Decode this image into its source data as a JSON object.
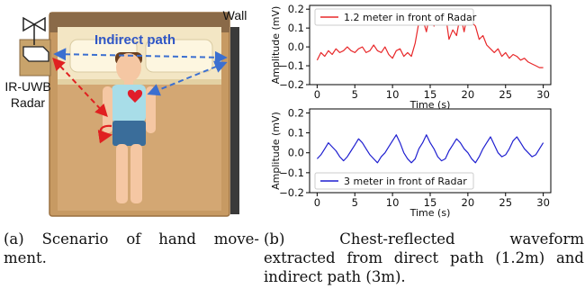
{
  "scene": {
    "wall_label": "Wall",
    "indirect_label": "Indirect path",
    "radar_label_1": "IR-UWB",
    "radar_label_2": "Radar"
  },
  "captions": {
    "a_line1": "(a) Scenario of hand move-",
    "a_line2": "ment.",
    "b_line1": "(b)    Chest-reflected    waveform",
    "b_line2": "extracted from direct path (1.2m) and",
    "b_line3": "indirect path (3m)."
  },
  "chart_data": [
    {
      "type": "line",
      "ylabel": "Amplitude (mV)",
      "xlabel": "Time (s)",
      "xlim": [
        -1,
        31
      ],
      "ylim": [
        -0.2,
        0.22
      ],
      "xticks": [
        0,
        5,
        10,
        15,
        20,
        25,
        30
      ],
      "yticks": [
        -0.2,
        -0.1,
        0.0,
        0.1,
        0.2
      ],
      "ytick_labels": [
        "−0.2",
        "−0.1",
        "0.0",
        "0.1",
        "0.2"
      ],
      "grid": false,
      "legend_position": "top-left",
      "series": [
        {
          "name": "1.2 meter in front of Radar",
          "color": "#e8282a",
          "x": [
            0,
            0.5,
            1,
            1.5,
            2,
            2.5,
            3,
            3.5,
            4,
            4.5,
            5,
            5.5,
            6,
            6.5,
            7,
            7.5,
            8,
            8.5,
            9,
            9.5,
            10,
            10.5,
            11,
            11.5,
            12,
            12.5,
            13,
            13.5,
            14,
            14.5,
            15,
            15.5,
            16,
            16.5,
            17,
            17.5,
            18,
            18.5,
            19,
            19.5,
            20,
            20.5,
            21,
            21.5,
            22,
            22.5,
            23,
            23.5,
            24,
            24.5,
            25,
            25.5,
            26,
            26.5,
            27,
            27.5,
            28,
            28.5,
            29,
            29.5,
            30
          ],
          "values": [
            -0.07,
            -0.03,
            -0.05,
            -0.02,
            -0.04,
            -0.01,
            -0.03,
            -0.02,
            0.0,
            -0.02,
            -0.03,
            -0.01,
            0.0,
            -0.03,
            -0.02,
            0.01,
            -0.02,
            -0.03,
            0.0,
            -0.04,
            -0.06,
            -0.02,
            -0.01,
            -0.05,
            -0.03,
            -0.05,
            0.02,
            0.13,
            0.15,
            0.08,
            0.19,
            0.11,
            0.16,
            0.13,
            0.18,
            0.04,
            0.09,
            0.06,
            0.17,
            0.08,
            0.19,
            0.13,
            0.11,
            0.04,
            0.06,
            0.01,
            -0.01,
            -0.03,
            -0.01,
            -0.05,
            -0.03,
            -0.06,
            -0.04,
            -0.05,
            -0.07,
            -0.06,
            -0.08,
            -0.09,
            -0.1,
            -0.11,
            -0.11
          ]
        }
      ]
    },
    {
      "type": "line",
      "ylabel": "Amplitude (mV)",
      "xlabel": "Time (s)",
      "xlim": [
        -1,
        31
      ],
      "ylim": [
        -0.2,
        0.22
      ],
      "xticks": [
        0,
        5,
        10,
        15,
        20,
        25,
        30
      ],
      "yticks": [
        -0.2,
        -0.1,
        0.0,
        0.1,
        0.2
      ],
      "ytick_labels": [
        "−0.2",
        "−0.1",
        "0.0",
        "0.1",
        "0.2"
      ],
      "grid": false,
      "legend_position": "bottom-left",
      "series": [
        {
          "name": "3 meter in front of Radar",
          "color": "#1f1fd0",
          "x": [
            0,
            0.5,
            1,
            1.5,
            2,
            2.5,
            3,
            3.5,
            4,
            4.5,
            5,
            5.5,
            6,
            6.5,
            7,
            7.5,
            8,
            8.5,
            9,
            9.5,
            10,
            10.5,
            11,
            11.5,
            12,
            12.5,
            13,
            13.5,
            14,
            14.5,
            15,
            15.5,
            16,
            16.5,
            17,
            17.5,
            18,
            18.5,
            19,
            19.5,
            20,
            20.5,
            21,
            21.5,
            22,
            22.5,
            23,
            23.5,
            24,
            24.5,
            25,
            25.5,
            26,
            26.5,
            27,
            27.5,
            28,
            28.5,
            29,
            29.5,
            30
          ],
          "values": [
            -0.03,
            -0.01,
            0.02,
            0.05,
            0.03,
            0.01,
            -0.02,
            -0.04,
            -0.02,
            0.01,
            0.04,
            0.07,
            0.05,
            0.02,
            -0.01,
            -0.03,
            -0.05,
            -0.02,
            0.0,
            0.03,
            0.06,
            0.09,
            0.05,
            0.0,
            -0.03,
            -0.05,
            -0.03,
            0.02,
            0.05,
            0.09,
            0.05,
            0.02,
            -0.02,
            -0.04,
            -0.03,
            0.01,
            0.04,
            0.07,
            0.05,
            0.02,
            0.0,
            -0.03,
            -0.05,
            -0.02,
            0.02,
            0.05,
            0.08,
            0.04,
            0.0,
            -0.02,
            -0.01,
            0.02,
            0.06,
            0.08,
            0.05,
            0.02,
            0.0,
            -0.02,
            -0.01,
            0.02,
            0.05
          ]
        }
      ]
    }
  ]
}
